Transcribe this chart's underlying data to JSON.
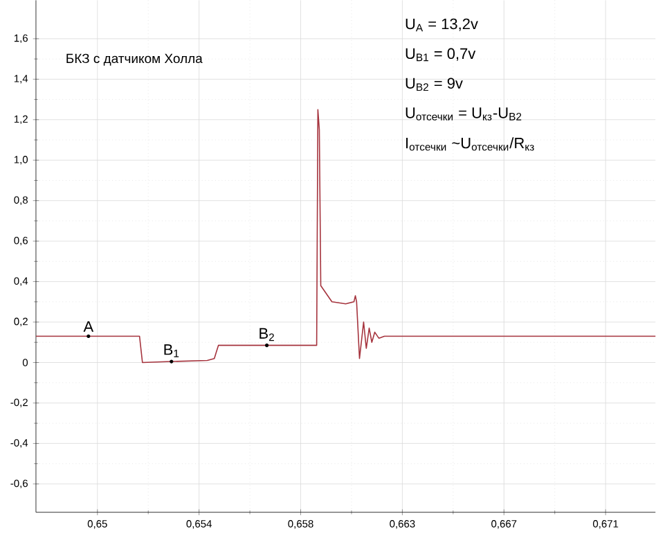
{
  "chart_data": {
    "type": "line",
    "title": "БКЗ с датчиком Холла",
    "x": [
      0.64746,
      0.65174,
      0.65186,
      0.65306,
      0.65454,
      0.65483,
      0.655,
      0.657,
      0.65906,
      0.65911,
      0.65917,
      0.65923,
      0.65969,
      0.66026,
      0.6606,
      0.66066,
      0.66071,
      0.66083,
      0.661,
      0.66111,
      0.66123,
      0.66134,
      0.66146,
      0.66163,
      0.66186,
      0.67306
    ],
    "series": [
      {
        "color": "#a5333d",
        "values": [
          0.13,
          0.13,
          0.0,
          0.005,
          0.01,
          0.02,
          0.085,
          0.085,
          0.085,
          1.25,
          1.15,
          0.38,
          0.3,
          0.29,
          0.3,
          0.33,
          0.3,
          0.02,
          0.2,
          0.07,
          0.17,
          0.1,
          0.15,
          0.12,
          0.13,
          0.13
        ]
      }
    ],
    "xlim": [
      0.64746,
      0.67306
    ],
    "ylim": [
      -0.74,
      1.79
    ],
    "xticks": [
      {
        "value": 0.65,
        "label": "0,65"
      },
      {
        "value": 0.6542,
        "label": "0,654"
      },
      {
        "value": 0.6584,
        "label": "0,658"
      },
      {
        "value": 0.6626,
        "label": "0,663"
      },
      {
        "value": 0.6668,
        "label": "0,667"
      },
      {
        "value": 0.671,
        "label": "0,671"
      }
    ],
    "yticks": [
      {
        "value": -0.6,
        "label": "-0,6"
      },
      {
        "value": -0.4,
        "label": "-0,4"
      },
      {
        "value": -0.2,
        "label": "-0,2"
      },
      0,
      {
        "value": 0.2,
        "label": "0,2"
      },
      {
        "value": 0.4,
        "label": "0,4"
      },
      {
        "value": 0.6,
        "label": "0,6"
      },
      {
        "value": 0.8,
        "label": "0,8"
      },
      {
        "value": 1.0,
        "label": "1,0"
      },
      {
        "value": 1.2,
        "label": "1,2"
      },
      {
        "value": 1.4,
        "label": "1,4"
      },
      {
        "value": 1.6,
        "label": "1,6"
      }
    ],
    "grid": true,
    "marker": "none",
    "line_style": "solid",
    "annotations": [
      {
        "text": "A",
        "x": 0.64963,
        "y": 0.13
      },
      {
        "text": "B$_{1}$",
        "x": 0.65306,
        "y": 0.005
      },
      {
        "text": "B$_{2}$",
        "x": 0.657,
        "y": 0.085
      },
      "U$_{A}$ = 13,2v",
      "U$_{B1}$ = 0,7v",
      "U$_{B2}$ = 9v",
      "U$_{отсечки}$ = U$_{кз}$-U$_{B2}$",
      "I$_{отсечки}$ ~U$_{отсечки}$/R$_{кз}$"
    ]
  }
}
